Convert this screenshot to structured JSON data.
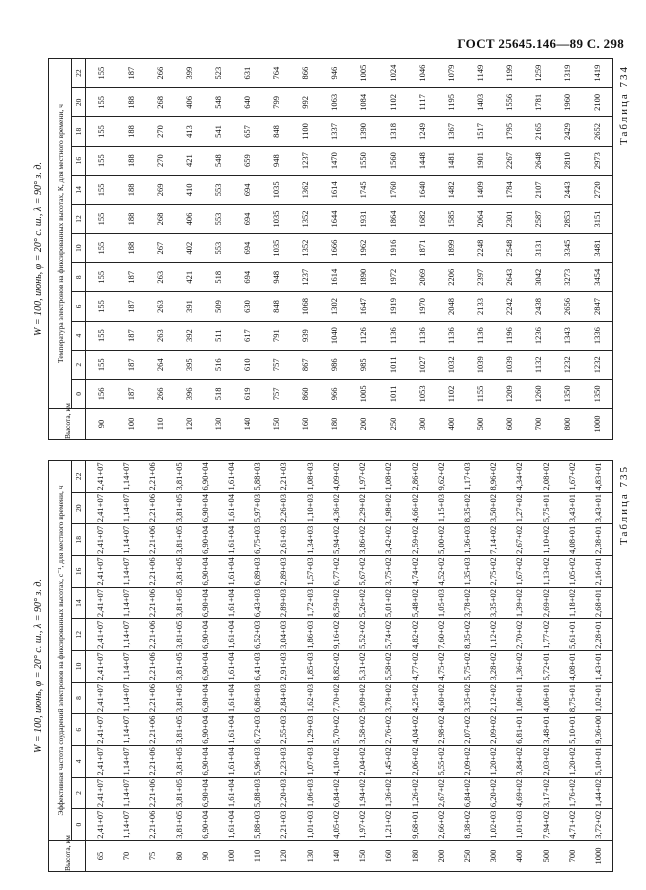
{
  "header": {
    "text": "ГОСТ 25645.146—89 С. 298"
  },
  "tables": [
    {
      "label": "Таблица 734",
      "title": "W = 100, июнь, φ = 20° с. ш., λ = 90° з. д.",
      "height_header": "Высота, км",
      "subheader": "Температура электронов на фиксированных высотах, К, для местного времени, ч",
      "times": [
        "0",
        "2",
        "4",
        "6",
        "8",
        "10",
        "12",
        "14",
        "16",
        "18",
        "20",
        "22"
      ],
      "rows": [
        [
          "90",
          "156",
          "155",
          "155",
          "155",
          "155",
          "155",
          "155",
          "155",
          "155",
          "155",
          "155",
          "155"
        ],
        [
          "100",
          "187",
          "187",
          "187",
          "187",
          "187",
          "188",
          "188",
          "188",
          "188",
          "188",
          "188",
          "187"
        ],
        [
          "110",
          "266",
          "264",
          "263",
          "263",
          "263",
          "267",
          "268",
          "269",
          "270",
          "270",
          "268",
          "266"
        ],
        [
          "120",
          "396",
          "395",
          "392",
          "391",
          "421",
          "402",
          "406",
          "410",
          "421",
          "413",
          "406",
          "399"
        ],
        [
          "130",
          "518",
          "516",
          "511",
          "509",
          "518",
          "553",
          "553",
          "553",
          "548",
          "541",
          "548",
          "523"
        ],
        [
          "140",
          "619",
          "610",
          "617",
          "630",
          "694",
          "694",
          "694",
          "694",
          "659",
          "657",
          "640",
          "631"
        ],
        [
          "150",
          "757",
          "757",
          "791",
          "848",
          "948",
          "1035",
          "1035",
          "1035",
          "948",
          "848",
          "799",
          "764"
        ],
        [
          "160",
          "860",
          "867",
          "939",
          "1068",
          "1237",
          "1352",
          "1352",
          "1362",
          "1237",
          "1100",
          "992",
          "866"
        ],
        [
          "180",
          "966",
          "986",
          "1040",
          "1302",
          "1614",
          "1666",
          "1644",
          "1614",
          "1470",
          "1337",
          "1063",
          "946"
        ],
        [
          "200",
          "1005",
          "985",
          "1126",
          "1647",
          "1890",
          "1962",
          "1931",
          "1745",
          "1550",
          "1390",
          "1084",
          "1005"
        ],
        [
          "250",
          "1011",
          "1011",
          "1136",
          "1919",
          "1972",
          "1916",
          "1864",
          "1760",
          "1560",
          "1318",
          "1102",
          "1024"
        ],
        [
          "300",
          "1053",
          "1027",
          "1136",
          "1970",
          "2069",
          "1871",
          "1682",
          "1640",
          "1448",
          "1249",
          "1117",
          "1046"
        ],
        [
          "400",
          "1102",
          "1032",
          "1136",
          "2048",
          "2206",
          "1899",
          "1585",
          "1482",
          "1481",
          "1367",
          "1195",
          "1079"
        ],
        [
          "500",
          "1155",
          "1039",
          "1136",
          "2133",
          "2397",
          "2248",
          "2064",
          "1409",
          "1901",
          "1517",
          "1403",
          "1149"
        ],
        [
          "600",
          "1209",
          "1039",
          "1196",
          "2242",
          "2643",
          "2548",
          "2301",
          "1784",
          "2267",
          "1795",
          "1556",
          "1199"
        ],
        [
          "700",
          "1260",
          "1132",
          "1236",
          "2438",
          "3042",
          "3131",
          "2587",
          "2107",
          "2648",
          "2165",
          "1781",
          "1259"
        ],
        [
          "800",
          "1350",
          "1232",
          "1343",
          "2656",
          "3273",
          "3345",
          "2853",
          "2443",
          "2810",
          "2429",
          "1960",
          "1319"
        ],
        [
          "1000",
          "1350",
          "1232",
          "1336",
          "2847",
          "3454",
          "3481",
          "3151",
          "2720",
          "2973",
          "2652",
          "2100",
          "1419"
        ]
      ]
    },
    {
      "label": "Таблица 735",
      "title": "W = 100, июнь, φ = 20° с. ш., λ = 90° з. д.",
      "height_header": "Высота, км",
      "subheader": "Эффективная частота соударений электронов на фиксированных высотах, с⁻¹, для местного времени, ч",
      "times": [
        "0",
        "2",
        "4",
        "6",
        "8",
        "10",
        "12",
        "14",
        "16",
        "18",
        "20",
        "22"
      ],
      "rows": [
        [
          "65",
          "2,41+07",
          "2,41+07",
          "2,41+07",
          "2,41+07",
          "2,41+07",
          "2,41+07",
          "2,41+07",
          "2,41+07",
          "2,41+07",
          "2,41+07",
          "2,41+07",
          "2,41+07"
        ],
        [
          "70",
          "1,14+07",
          "1,14+07",
          "1,14+07",
          "1,14+07",
          "1,14+07",
          "1,14+07",
          "1,14+07",
          "1,14+07",
          "1,14+07",
          "1,14+07",
          "1,14+07",
          "1,14+07"
        ],
        [
          "75",
          "2,21+06",
          "2,21+06",
          "2,21+06",
          "2,21+06",
          "2,21+06",
          "2,21+06",
          "2,21+06",
          "2,21+06",
          "2,21+06",
          "2,21+06",
          "2,21+06",
          "2,21+06"
        ],
        [
          "80",
          "3,81+05",
          "3,81+05",
          "3,81+05",
          "3,81+05",
          "3,81+05",
          "3,81+05",
          "3,81+05",
          "3,81+05",
          "3,81+05",
          "3,81+05",
          "3,81+05",
          "3,81+05"
        ],
        [
          "90",
          "6,90+04",
          "6,90+04",
          "6,90+04",
          "6,90+04",
          "6,90+04",
          "6,90+04",
          "6,90+04",
          "6,90+04",
          "6,90+04",
          "6,90+04",
          "6,90+04",
          "6,90+04"
        ],
        [
          "100",
          "1,61+04",
          "1,61+04",
          "1,61+04",
          "1,61+04",
          "1,61+04",
          "1,61+04",
          "1,61+04",
          "1,61+04",
          "1,61+04",
          "1,61+04",
          "1,61+04",
          "1,61+04"
        ],
        [
          "110",
          "5,88+03",
          "5,88+03",
          "5,96+03",
          "6,72+03",
          "6,86+03",
          "6,41+03",
          "6,52+03",
          "6,43+03",
          "6,89+03",
          "6,75+03",
          "5,97+03",
          "5,88+03"
        ],
        [
          "120",
          "2,21+03",
          "2,20+03",
          "2,23+03",
          "2,55+03",
          "2,84+03",
          "2,91+03",
          "3,04+03",
          "2,89+03",
          "2,89+03",
          "2,61+03",
          "2,26+03",
          "2,21+03"
        ],
        [
          "130",
          "1,01+03",
          "1,06+03",
          "1,07+03",
          "1,29+03",
          "1,62+03",
          "1,85+03",
          "1,86+03",
          "1,72+03",
          "1,57+03",
          "1,34+03",
          "1,10+03",
          "1,08+03"
        ],
        [
          "140",
          "4,05+02",
          "6,84+02",
          "4,10+02",
          "5,70+02",
          "7,70+02",
          "8,82+02",
          "9,16+02",
          "8,59+02",
          "6,77+02",
          "5,94+02",
          "4,36+02",
          "4,09+02"
        ],
        [
          "150",
          "1,97+02",
          "1,94+02",
          "2,04+02",
          "3,58+02",
          "5,09+02",
          "5,31+02",
          "5,52+02",
          "5,26+02",
          "5,67+02",
          "3,86+02",
          "2,29+02",
          "1,97+02"
        ],
        [
          "160",
          "1,21+02",
          "1,36+02",
          "1,45+02",
          "2,76+02",
          "3,78+02",
          "5,58+02",
          "5,74+02",
          "5,01+02",
          "3,75+02",
          "3,42+02",
          "1,98+02",
          "1,08+02"
        ],
        [
          "180",
          "9,68+01",
          "1,26+02",
          "2,06+02",
          "4,04+02",
          "4,25+02",
          "4,77+02",
          "4,82+02",
          "5,48+02",
          "4,74+02",
          "2,59+02",
          "4,66+02",
          "2,86+02"
        ],
        [
          "200",
          "2,66+02",
          "2,67+02",
          "5,55+02",
          "2,98+02",
          "4,60+02",
          "4,75+02",
          "7,60+02",
          "1,05+03",
          "4,52+02",
          "5,00+02",
          "1,15+03",
          "9,62+02"
        ],
        [
          "250",
          "8,38+02",
          "6,84+02",
          "2,09+02",
          "2,07+02",
          "3,35+02",
          "5,75+02",
          "8,35+02",
          "3,78+02",
          "1,35+03",
          "1,36+03",
          "8,35+02",
          "1,17+03"
        ],
        [
          "300",
          "1,02+03",
          "6,20+02",
          "1,20+02",
          "2,09+02",
          "2,12+02",
          "3,28+02",
          "1,12+02",
          "3,35+02",
          "2,75+02",
          "7,14+02",
          "3,50+02",
          "8,96+02"
        ],
        [
          "400",
          "1,01+03",
          "4,69+02",
          "3,84+02",
          "6,81+01",
          "1,06+01",
          "1,36+02",
          "2,70+02",
          "1,39+02",
          "1,67+02",
          "2,67+02",
          "1,27+02",
          "4,34+02"
        ],
        [
          "500",
          "7,94+02",
          "3,17+02",
          "2,03+02",
          "3,48+01",
          "4,06+01",
          "5,72+01",
          "1,77+02",
          "2,69+02",
          "1,13+02",
          "1,10+02",
          "5,75+01",
          "2,08+02"
        ],
        [
          "700",
          "4,71+02",
          "1,76+02",
          "1,20+02",
          "5,10+01",
          "8,75+01",
          "4,08+01",
          "5,61+01",
          "1,18+02",
          "1,05+02",
          "4,08+01",
          "3,43+01",
          "1,67+02"
        ],
        [
          "1000",
          "3,72+02",
          "1,44+02",
          "5,10+01",
          "9,36+00",
          "1,02+01",
          "1,43+01",
          "2,28+01",
          "2,68+01",
          "2,16+01",
          "2,38+01",
          "3,43+01",
          "4,83+01"
        ]
      ]
    }
  ]
}
